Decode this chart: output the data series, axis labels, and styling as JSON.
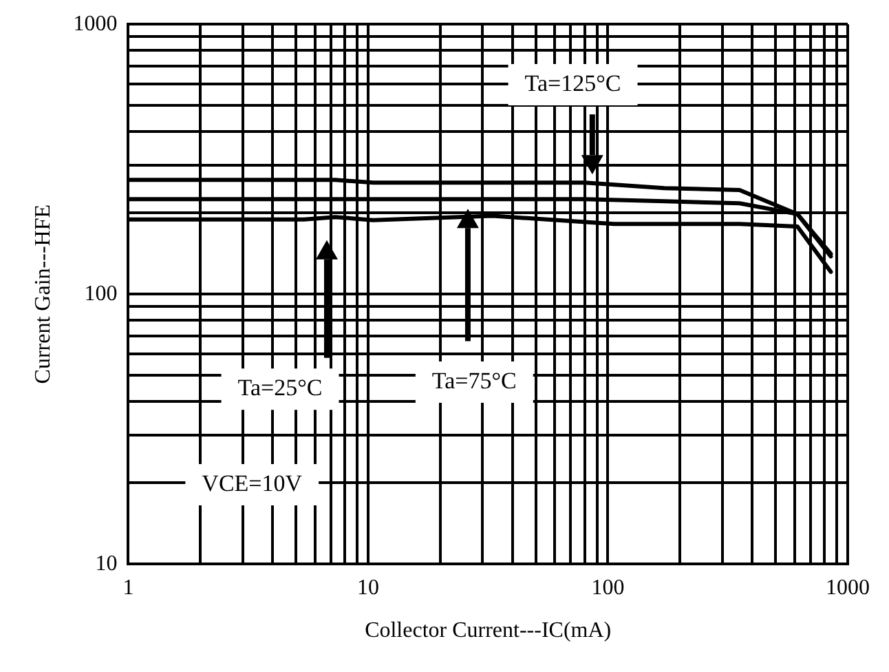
{
  "chart_data": {
    "type": "line",
    "xlabel": "Collector Current---IC(mA)",
    "ylabel": "Current Gain---HFE",
    "log": "xy",
    "grid": true,
    "legend": false,
    "marker": "none",
    "line_style": "solid",
    "xlim": [
      1,
      1000
    ],
    "ylim": [
      10,
      1000
    ],
    "xticks": [
      1,
      {
        "value": 2,
        "label": null
      },
      {
        "value": 3,
        "label": null
      },
      {
        "value": 4,
        "label": null
      },
      {
        "value": 5,
        "label": null
      },
      {
        "value": 6,
        "label": null
      },
      {
        "value": 7,
        "label": null
      },
      {
        "value": 8,
        "label": null
      },
      {
        "value": 9,
        "label": null
      },
      10,
      {
        "value": 20,
        "label": null
      },
      {
        "value": 30,
        "label": null
      },
      {
        "value": 40,
        "label": null
      },
      {
        "value": 50,
        "label": null
      },
      {
        "value": 60,
        "label": null
      },
      {
        "value": 70,
        "label": null
      },
      {
        "value": 80,
        "label": null
      },
      {
        "value": 90,
        "label": null
      },
      100,
      {
        "value": 200,
        "label": null
      },
      {
        "value": 300,
        "label": null
      },
      {
        "value": 400,
        "label": null
      },
      {
        "value": 500,
        "label": null
      },
      {
        "value": 600,
        "label": null
      },
      {
        "value": 700,
        "label": null
      },
      {
        "value": 800,
        "label": null
      },
      {
        "value": 900,
        "label": null
      },
      1000
    ],
    "yticks": [
      10,
      {
        "value": 20,
        "label": null
      },
      {
        "value": 30,
        "label": null
      },
      {
        "value": 40,
        "label": null
      },
      {
        "value": 50,
        "label": null
      },
      {
        "value": 60,
        "label": null
      },
      {
        "value": 70,
        "label": null
      },
      {
        "value": 80,
        "label": null
      },
      {
        "value": 90,
        "label": null
      },
      100,
      {
        "value": 200,
        "label": null
      },
      {
        "value": 300,
        "label": null
      },
      {
        "value": 400,
        "label": null
      },
      {
        "value": 500,
        "label": null
      },
      {
        "value": 600,
        "label": null
      },
      {
        "value": 700,
        "label": null
      },
      {
        "value": 800,
        "label": null
      },
      {
        "value": 900,
        "label": null
      },
      1000
    ],
    "series": [
      {
        "color": "#000000",
        "x": [
          1,
          7.3,
          10.5,
          80,
          172,
          354,
          617,
          850
        ],
        "values": [
          265,
          265,
          259,
          259,
          247,
          243,
          198,
          141
        ]
      },
      {
        "color": "#000000",
        "x": [
          1,
          80,
          172,
          354,
          617,
          850
        ],
        "values": [
          225,
          225,
          221,
          217,
          198,
          138
        ]
      },
      {
        "color": "#000000",
        "x": [
          1,
          5.4,
          7.3,
          10.5,
          33,
          106,
          354,
          617,
          850
        ],
        "values": [
          189,
          189,
          193,
          188,
          195,
          182,
          182,
          178,
          121
        ]
      }
    ],
    "annotations": [
      "Ta=125°C",
      "Ta=25°C",
      "Ta=75°C",
      "VCE=10V"
    ]
  }
}
